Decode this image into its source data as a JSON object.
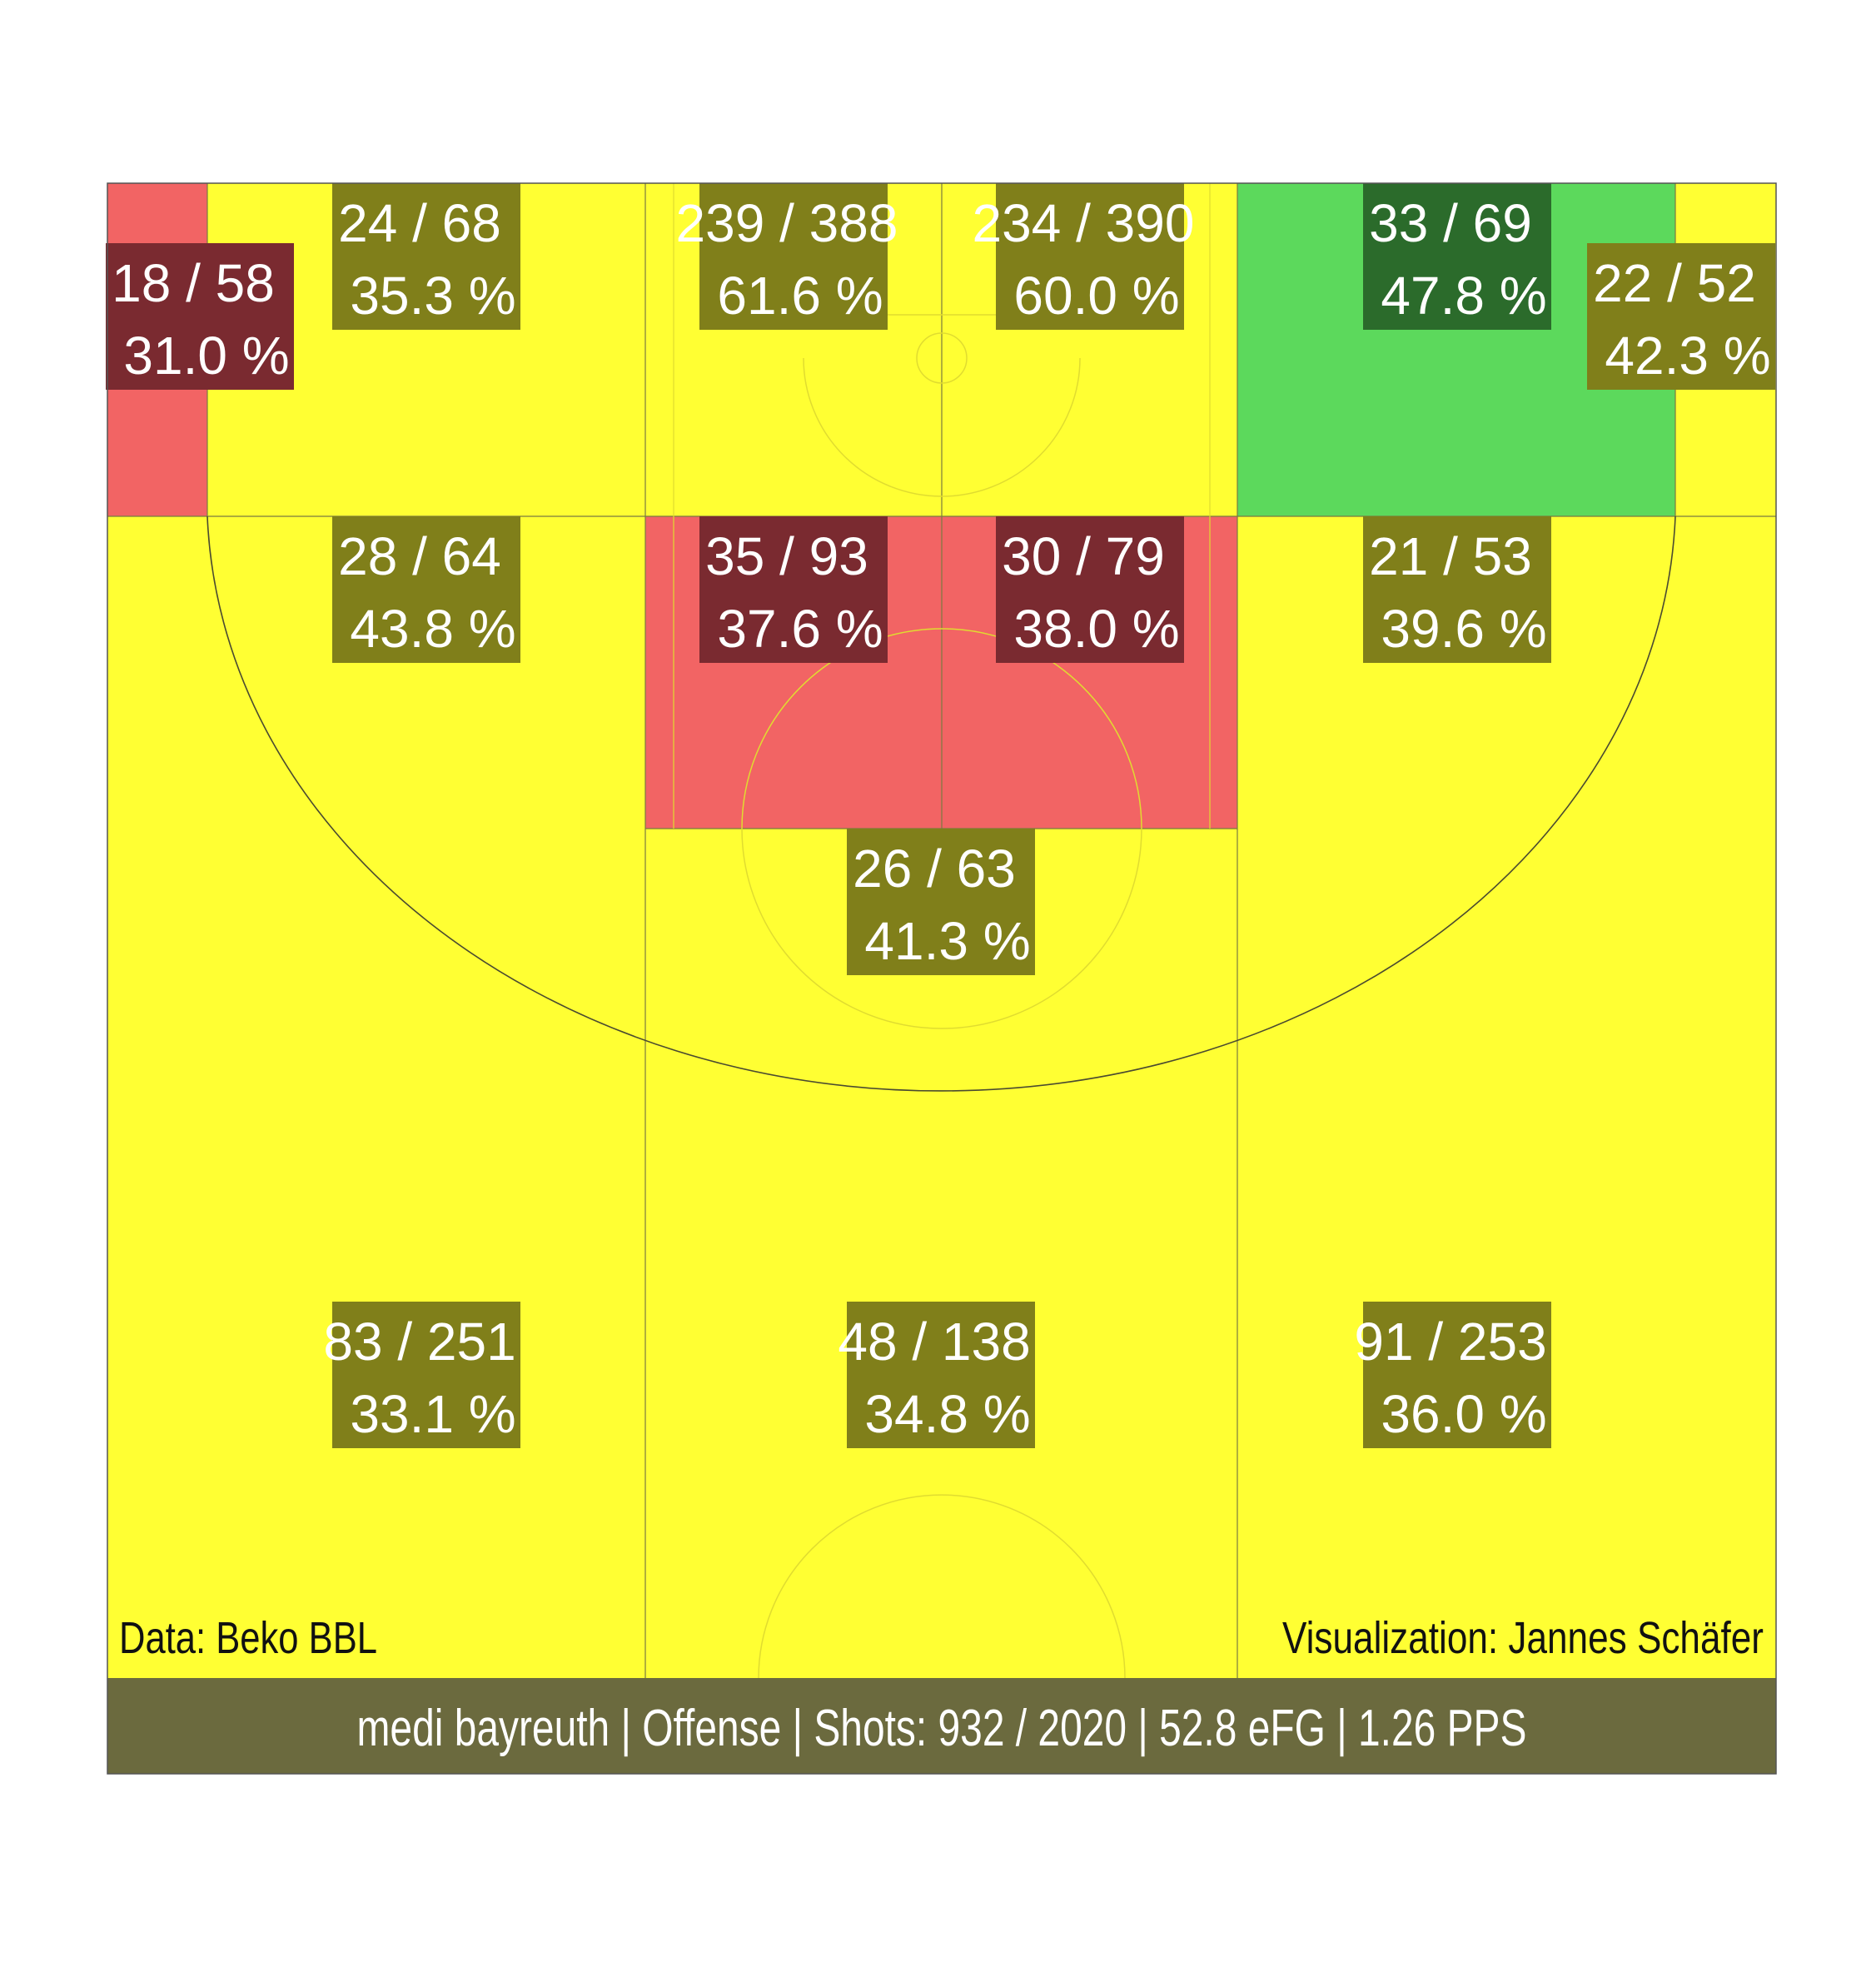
{
  "chart_data": {
    "type": "heatmap",
    "colors": {
      "average": "#ffff33",
      "below": "#f26464",
      "above": "#5cd95c",
      "label_average": "#807f1a",
      "label_below": "#7a2a30",
      "label_above": "#2b6b2b",
      "footer": "#6b6a3e"
    },
    "zones": [
      {
        "id": "left-corner-three",
        "made": 18,
        "attempts": 58,
        "pct": 31.0,
        "made_attempts": "18 / 58",
        "pct_label": "31.0 %",
        "rating": "below"
      },
      {
        "id": "left-baseline-mid",
        "made": 24,
        "attempts": 68,
        "pct": 35.3,
        "made_attempts": "24 / 68",
        "pct_label": "35.3 %",
        "rating": "average"
      },
      {
        "id": "rim-left",
        "made": 239,
        "attempts": 388,
        "pct": 61.6,
        "made_attempts": "239 / 388",
        "pct_label": "61.6 %",
        "rating": "average"
      },
      {
        "id": "rim-right",
        "made": 234,
        "attempts": 390,
        "pct": 60.0,
        "made_attempts": "234 / 390",
        "pct_label": "60.0 %",
        "rating": "average"
      },
      {
        "id": "right-baseline-mid",
        "made": 33,
        "attempts": 69,
        "pct": 47.8,
        "made_attempts": "33 / 69",
        "pct_label": "47.8 %",
        "rating": "above"
      },
      {
        "id": "right-corner-three",
        "made": 22,
        "attempts": 52,
        "pct": 42.3,
        "made_attempts": "22 / 52",
        "pct_label": "42.3 %",
        "rating": "average"
      },
      {
        "id": "left-wing-mid",
        "made": 28,
        "attempts": 64,
        "pct": 43.8,
        "made_attempts": "28 / 64",
        "pct_label": "43.8 %",
        "rating": "average"
      },
      {
        "id": "paint-left",
        "made": 35,
        "attempts": 93,
        "pct": 37.6,
        "made_attempts": "35 / 93",
        "pct_label": "37.6 %",
        "rating": "below"
      },
      {
        "id": "paint-right",
        "made": 30,
        "attempts": 79,
        "pct": 38.0,
        "made_attempts": "30 / 79",
        "pct_label": "38.0 %",
        "rating": "below"
      },
      {
        "id": "right-wing-mid",
        "made": 21,
        "attempts": 53,
        "pct": 39.6,
        "made_attempts": "21 / 53",
        "pct_label": "39.6 %",
        "rating": "average"
      },
      {
        "id": "top-key-mid",
        "made": 26,
        "attempts": 63,
        "pct": 41.3,
        "made_attempts": "26 / 63",
        "pct_label": "41.3 %",
        "rating": "average"
      },
      {
        "id": "left-wing-three",
        "made": 83,
        "attempts": 251,
        "pct": 33.1,
        "made_attempts": "83 / 251",
        "pct_label": "33.1 %",
        "rating": "average"
      },
      {
        "id": "top-three",
        "made": 48,
        "attempts": 138,
        "pct": 34.8,
        "made_attempts": "48 / 138",
        "pct_label": "34.8 %",
        "rating": "average"
      },
      {
        "id": "right-wing-three",
        "made": 91,
        "attempts": 253,
        "pct": 36.0,
        "made_attempts": "91 / 253",
        "pct_label": "36.0 %",
        "rating": "average"
      }
    ],
    "source_credit": "Data: Beko BBL",
    "author_credit": "Visualization: Jannes Schäfer",
    "footer": "medi bayreuth | Offense | Shots: 932 / 2020 | 52.8 eFG | 1.26 PPS"
  }
}
